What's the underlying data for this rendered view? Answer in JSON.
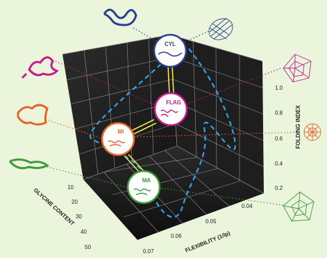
{
  "colors": {
    "background": "#eaf5dc",
    "box_dark": "#1b1b1b",
    "box_light": "#2b2b2b",
    "grid": "#d9d9d9",
    "path_dash": "#3aa0e6",
    "connector": "#f3e94a",
    "cyl": "#2a3d8f",
    "flag": "#c41a8c",
    "mi": "#e8662c",
    "ma": "#3f9a3a"
  },
  "nodes": {
    "cyl": {
      "label": "CYL"
    },
    "flag": {
      "label": "FLAG"
    },
    "mi": {
      "label": "MI"
    },
    "ma": {
      "label": "MA"
    }
  },
  "axes": {
    "folding_index": {
      "title": "FOLDING INDEX",
      "ticks": [
        "0.2",
        "0.4",
        "0.6",
        "0.8",
        "1.0"
      ]
    },
    "glycine_content": {
      "title": "GLYCINE CONTENT",
      "ticks": [
        "10",
        "20",
        "30",
        "40",
        "50"
      ]
    },
    "flexibility": {
      "title": "FLEXIBILITY (1/lp)",
      "ticks": [
        "0.04",
        "0.05",
        "0.06",
        "0.07"
      ]
    }
  },
  "icons": {
    "left": [
      "helix-protein-icon",
      "coiled-protein-pink-icon",
      "coiled-protein-orange-icon",
      "fibrous-protein-green-icon"
    ],
    "right": [
      "mesh-cylinder-icon",
      "spider-web-pink-icon",
      "spider-web-orange-icon",
      "spider-web-green-icon"
    ]
  }
}
